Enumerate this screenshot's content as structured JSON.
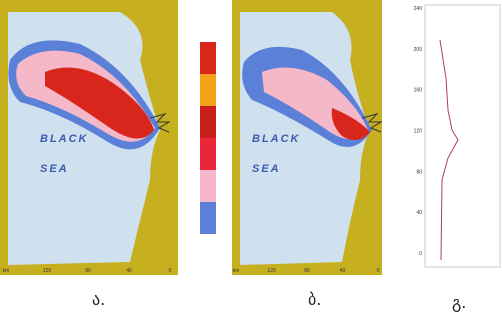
{
  "panels": [
    {
      "label": "ა.",
      "sea_label": [
        "BLACK",
        "SEA"
      ],
      "x_ticks": [
        "km",
        "120",
        "80",
        "40",
        "0"
      ]
    },
    {
      "label": "ბ.",
      "sea_label": [
        "BLACK",
        "SEA"
      ],
      "x_ticks": [
        "km",
        "120",
        "80",
        "40",
        "0"
      ]
    },
    {
      "label": "გ.",
      "y_ticks": [
        "240",
        "200",
        "160",
        "120",
        "80",
        "40",
        "0"
      ]
    }
  ]
}
